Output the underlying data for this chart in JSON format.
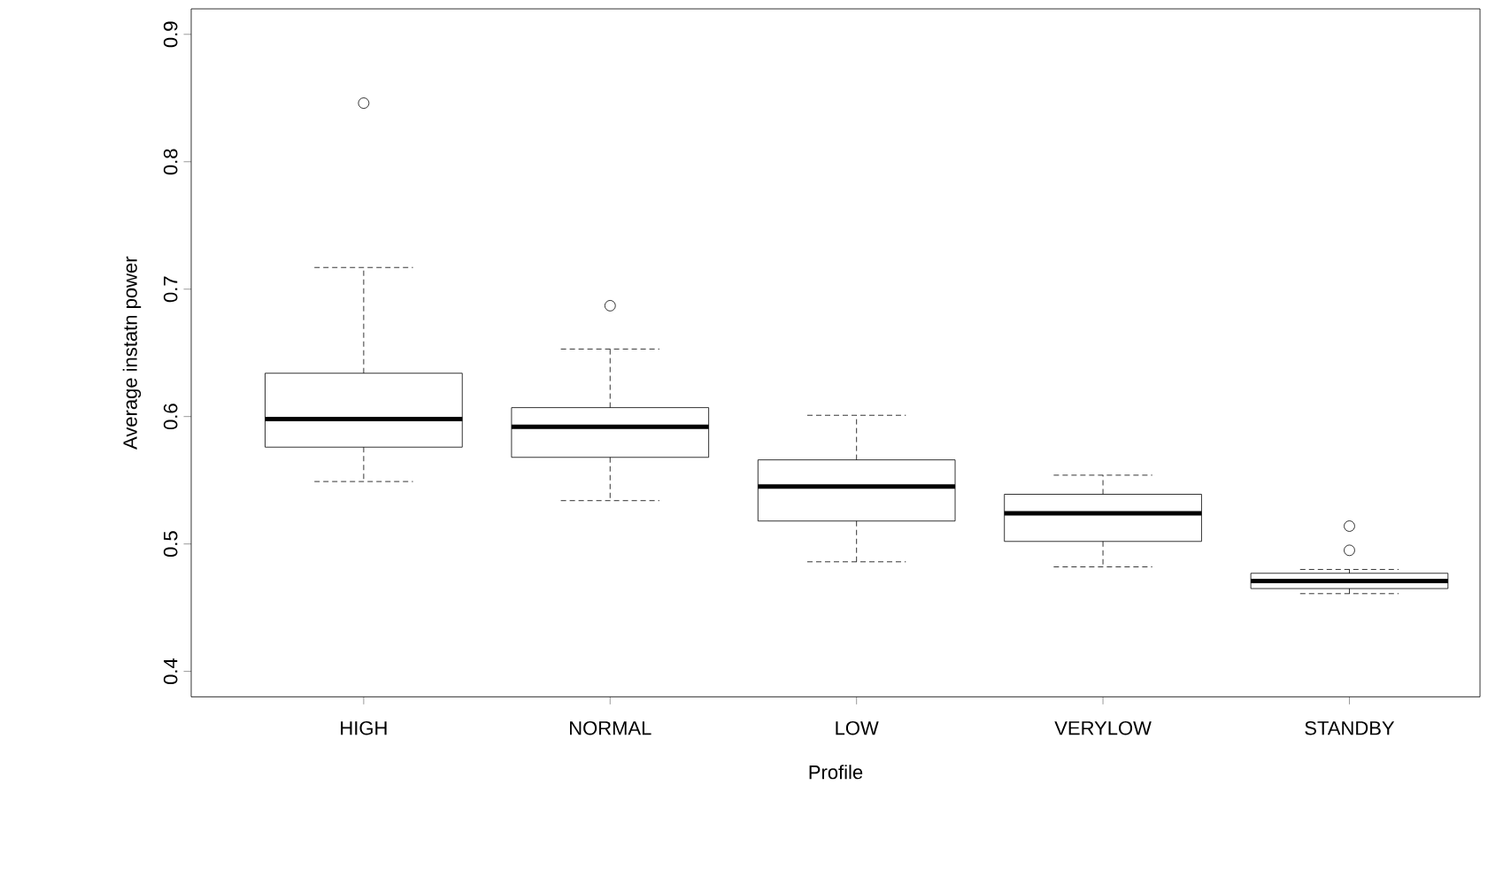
{
  "chart_data": {
    "type": "box",
    "xlabel": "Profile",
    "ylabel": "Average instatn power",
    "categories": [
      "HIGH",
      "NORMAL",
      "LOW",
      "VERYLOW",
      "STANDBY"
    ],
    "boxes": [
      {
        "low": 0.549,
        "q1": 0.576,
        "median": 0.598,
        "q3": 0.634,
        "high": 0.717,
        "outliers": [
          0.846
        ]
      },
      {
        "low": 0.534,
        "q1": 0.568,
        "median": 0.592,
        "q3": 0.607,
        "high": 0.653,
        "outliers": [
          0.687
        ]
      },
      {
        "low": 0.486,
        "q1": 0.518,
        "median": 0.545,
        "q3": 0.566,
        "high": 0.601
      },
      {
        "low": 0.482,
        "q1": 0.502,
        "median": 0.524,
        "q3": 0.539,
        "high": 0.554
      },
      {
        "low": 0.461,
        "q1": 0.465,
        "median": 0.471,
        "q3": 0.477,
        "high": 0.48,
        "outliers": [
          0.495,
          0.514
        ]
      }
    ],
    "ylim": [
      0.38,
      0.92
    ],
    "yticks": [
      0.4,
      0.5,
      0.6,
      0.7,
      0.8,
      0.9
    ]
  }
}
